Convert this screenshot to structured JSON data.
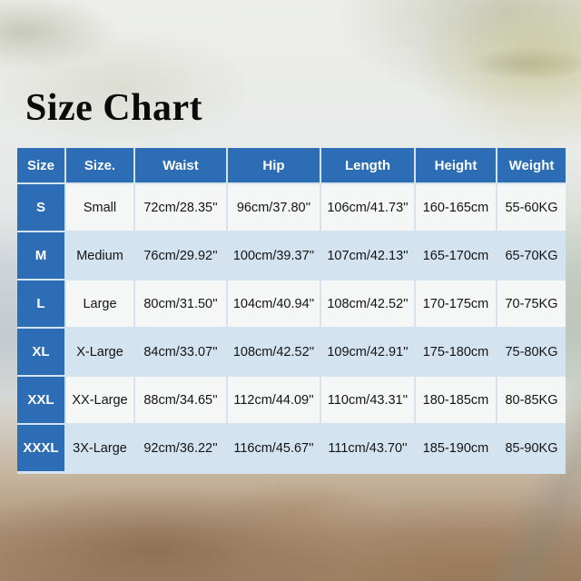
{
  "page": {
    "title": "Size Chart"
  },
  "colors": {
    "header_blue": "#2c6db6",
    "row_light": "#f6f6f4",
    "row_alt": "#d7e4f0",
    "grid_line": "#d5e3ef",
    "title_color": "#0b0b0b"
  },
  "table": {
    "columns": [
      "Size",
      "Size.",
      "Waist",
      "Hip",
      "Length",
      "Height",
      "Weight"
    ],
    "rows": [
      {
        "size": "S",
        "cells": [
          "Small",
          "72cm/28.35''",
          "96cm/37.80''",
          "106cm/41.73''",
          "160-165cm",
          "55-60KG"
        ]
      },
      {
        "size": "M",
        "cells": [
          "Medium",
          "76cm/29.92''",
          "100cm/39.37''",
          "107cm/42.13''",
          "165-170cm",
          "65-70KG"
        ]
      },
      {
        "size": "L",
        "cells": [
          "Large",
          "80cm/31.50''",
          "104cm/40.94''",
          "108cm/42.52''",
          "170-175cm",
          "70-75KG"
        ]
      },
      {
        "size": "XL",
        "cells": [
          "X-Large",
          "84cm/33.07''",
          "108cm/42.52''",
          "109cm/42.91''",
          "175-180cm",
          "75-80KG"
        ]
      },
      {
        "size": "XXL",
        "cells": [
          "XX-Large",
          "88cm/34.65''",
          "112cm/44.09''",
          "110cm/43.31''",
          "180-185cm",
          "80-85KG"
        ]
      },
      {
        "size": "XXXL",
        "cells": [
          "3X-Large",
          "92cm/36.22''",
          "116cm/45.67''",
          "111cm/43.70''",
          "185-190cm",
          "85-90KG"
        ]
      }
    ]
  }
}
